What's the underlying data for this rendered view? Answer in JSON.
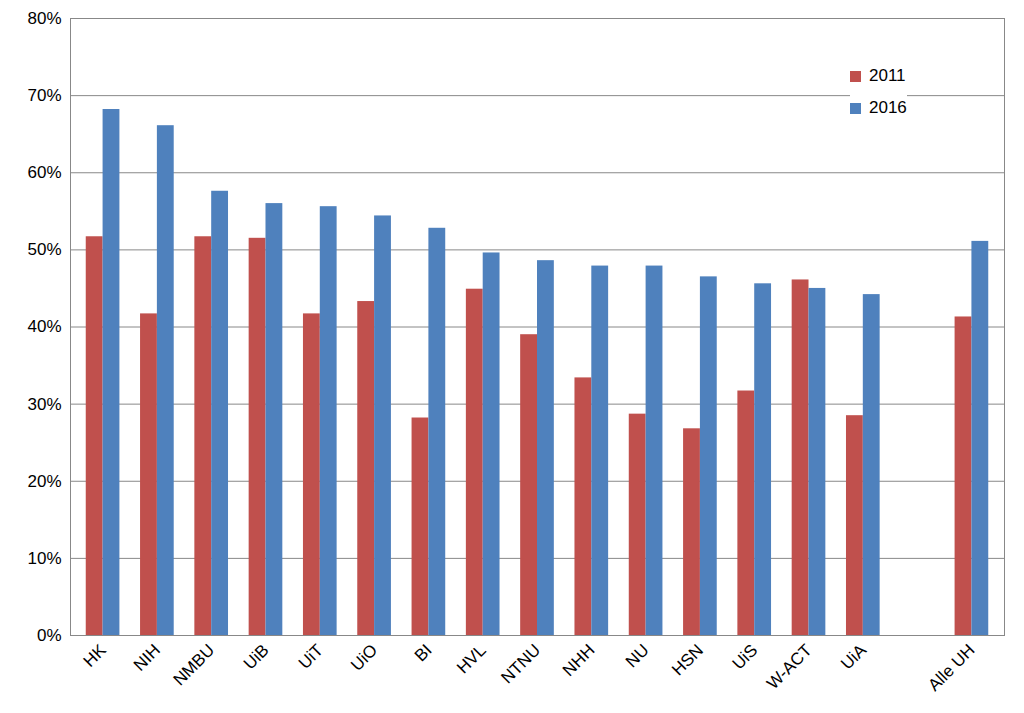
{
  "chart_data": {
    "type": "bar",
    "categories": [
      "HK",
      "NIH",
      "NMBU",
      "UiB",
      "UiT",
      "UiO",
      "BI",
      "HVL",
      "NTNU",
      "NHH",
      "NU",
      "HSN",
      "UiS",
      "W-ACT",
      "UiA",
      null,
      "Alle UH"
    ],
    "series": [
      {
        "name": "2011",
        "color": "#c0504d",
        "values": [
          51.7,
          41.7,
          51.7,
          51.5,
          41.7,
          43.3,
          28.2,
          44.9,
          39.0,
          33.4,
          28.7,
          26.8,
          31.7,
          46.1,
          28.5,
          null,
          41.3
        ]
      },
      {
        "name": "2016",
        "color": "#4f81bd",
        "values": [
          68.2,
          66.1,
          57.6,
          56.0,
          55.6,
          54.4,
          52.8,
          49.6,
          48.6,
          47.9,
          47.9,
          46.5,
          45.6,
          45.0,
          44.2,
          null,
          51.1
        ]
      }
    ],
    "ylim": [
      0,
      80
    ],
    "yticks": [
      {
        "value": 0,
        "label": "0%"
      },
      {
        "value": 10,
        "label": "10%"
      },
      {
        "value": 20,
        "label": "20%"
      },
      {
        "value": 30,
        "label": "30%"
      },
      {
        "value": 40,
        "label": "40%"
      },
      {
        "value": 50,
        "label": "50%"
      },
      {
        "value": 60,
        "label": "60%"
      },
      {
        "value": 70,
        "label": "70%"
      },
      {
        "value": 80,
        "label": "80%"
      }
    ],
    "grid": true,
    "legend": "top-right"
  }
}
